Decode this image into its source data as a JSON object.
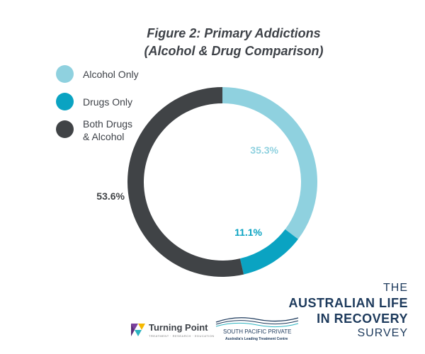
{
  "chart_data": {
    "type": "pie",
    "title_line1": "Figure 2: Primary Addictions",
    "title_line2": "(Alcohol & Drug Comparison)",
    "series": [
      {
        "name": "Alcohol Only",
        "value": 35.3,
        "label": "35.3%",
        "color": "#8fd1df",
        "label_color": "#8fd1df"
      },
      {
        "name": "Drugs Only",
        "value": 11.1,
        "label": "11.1%",
        "color": "#0aa3c2",
        "label_color": "#0aa3c2"
      },
      {
        "name_line1": "Both Drugs",
        "name_line2": "& Alcohol",
        "value": 53.6,
        "label": "53.6%",
        "color": "#404346",
        "label_color": "#404346"
      }
    ],
    "donut": true,
    "legend_position": "top-left"
  },
  "branding": {
    "survey_line1": "THE",
    "survey_line2": "AUSTRALIAN LIFE",
    "survey_line3": "IN RECOVERY",
    "survey_line4": "SURVEY",
    "turning_point_name": "Turning Point",
    "turning_point_tagline": "TREATMENT · RESEARCH · EDUCATION",
    "spp_name": "SOUTH PACIFIC PRIVATE",
    "spp_tagline": "Australia's Leading Treatment Centre",
    "colors": {
      "navy": "#1d3a5c",
      "purple": "#7b3f9e",
      "yellow": "#f5b800",
      "teal": "#2bb3c0"
    }
  }
}
